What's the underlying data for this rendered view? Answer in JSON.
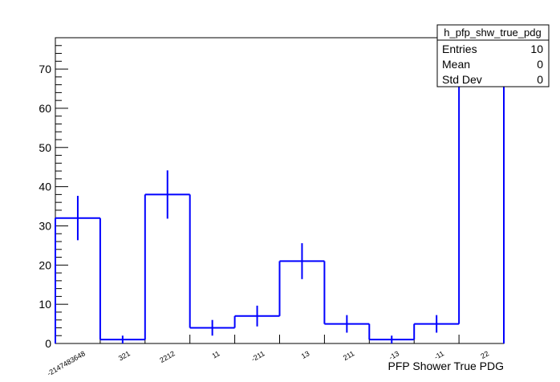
{
  "chart_data": {
    "type": "bar",
    "histogram_name": "h_pfp_shw_true_pdg",
    "xlabel": "PFP Shower True PDG",
    "ylabel": "",
    "ylim": [
      0,
      78
    ],
    "yticks": [
      0,
      10,
      20,
      30,
      40,
      50,
      60,
      70
    ],
    "categories": [
      "-2147483648",
      "321",
      "2212",
      "11",
      "-211",
      "13",
      "211",
      "-13",
      "-11",
      "22"
    ],
    "values": [
      32,
      1,
      38,
      4,
      7,
      21,
      5,
      1,
      5,
      78
    ],
    "errors": [
      5.66,
      1.0,
      6.16,
      2.0,
      2.65,
      4.58,
      2.24,
      1.0,
      2.24,
      8.83
    ],
    "line_color": "#0000ff",
    "stats": [
      {
        "label": "Entries",
        "value": "10"
      },
      {
        "label": "Mean",
        "value": "0"
      },
      {
        "label": "Std Dev",
        "value": "0"
      }
    ]
  }
}
